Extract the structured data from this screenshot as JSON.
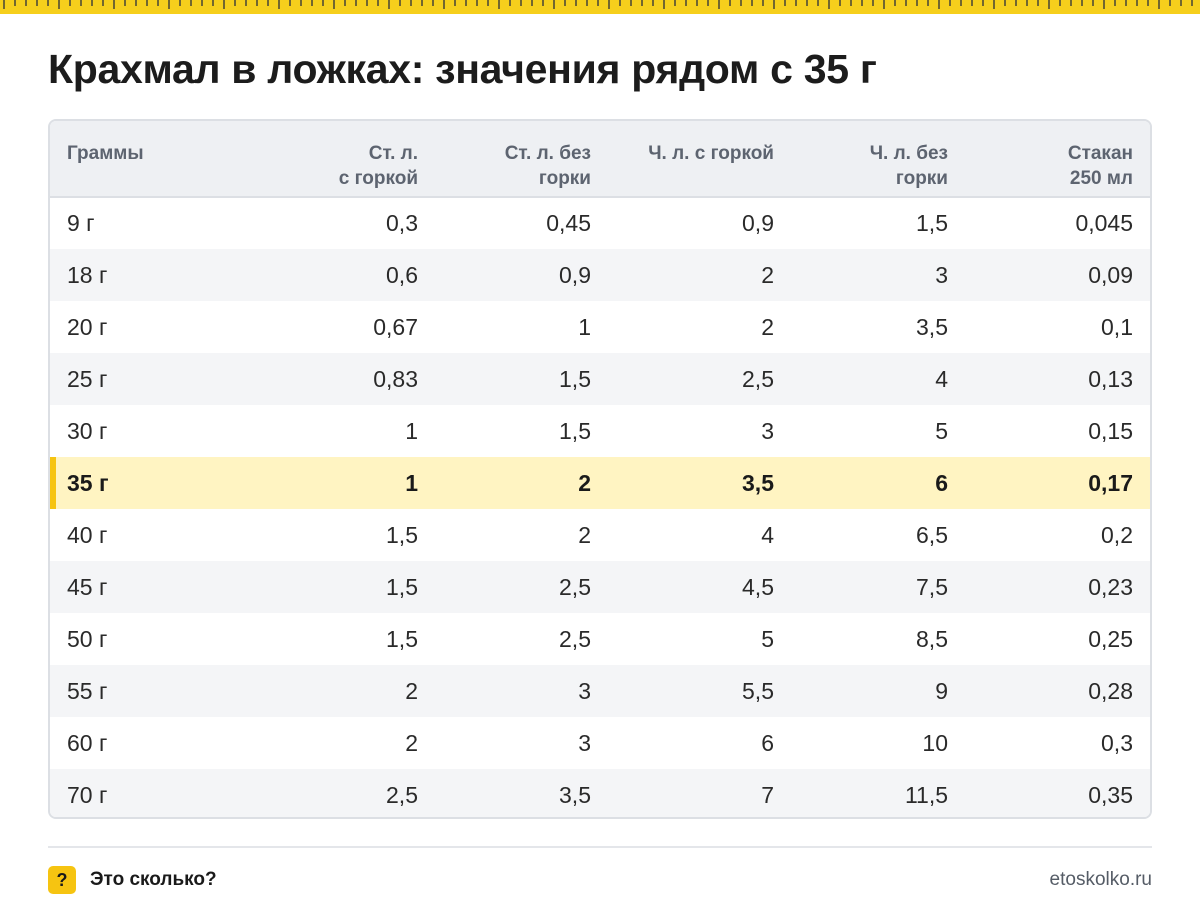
{
  "title": "Крахмал в ложках: значения рядом с 35 г",
  "accent_color": "#f6c411",
  "highlight_row_color": "#fff4c2",
  "table": {
    "headers": [
      [
        "Граммы"
      ],
      [
        "Ст. л.",
        "с горкой"
      ],
      [
        "Ст. л. без",
        "горки"
      ],
      [
        "Ч. л. с горкой"
      ],
      [
        "Ч. л. без",
        "горки"
      ],
      [
        "Стакан",
        "250 мл"
      ]
    ],
    "highlight_row_index": 5,
    "rows": [
      [
        "9 г",
        "0,3",
        "0,45",
        "0,9",
        "1,5",
        "0,045"
      ],
      [
        "18 г",
        "0,6",
        "0,9",
        "2",
        "3",
        "0,09"
      ],
      [
        "20 г",
        "0,67",
        "1",
        "2",
        "3,5",
        "0,1"
      ],
      [
        "25 г",
        "0,83",
        "1,5",
        "2,5",
        "4",
        "0,13"
      ],
      [
        "30 г",
        "1",
        "1,5",
        "3",
        "5",
        "0,15"
      ],
      [
        "35 г",
        "1",
        "2",
        "3,5",
        "6",
        "0,17"
      ],
      [
        "40 г",
        "1,5",
        "2",
        "4",
        "6,5",
        "0,2"
      ],
      [
        "45 г",
        "1,5",
        "2,5",
        "4,5",
        "7,5",
        "0,23"
      ],
      [
        "50 г",
        "1,5",
        "2,5",
        "5",
        "8,5",
        "0,25"
      ],
      [
        "55 г",
        "2",
        "3",
        "5,5",
        "9",
        "0,28"
      ],
      [
        "60 г",
        "2",
        "3",
        "6",
        "10",
        "0,3"
      ],
      [
        "70 г",
        "2,5",
        "3,5",
        "7",
        "11,5",
        "0,35"
      ]
    ]
  },
  "footer": {
    "badge": "?",
    "brand": "Это сколько?",
    "site": "etoskolko.ru"
  }
}
